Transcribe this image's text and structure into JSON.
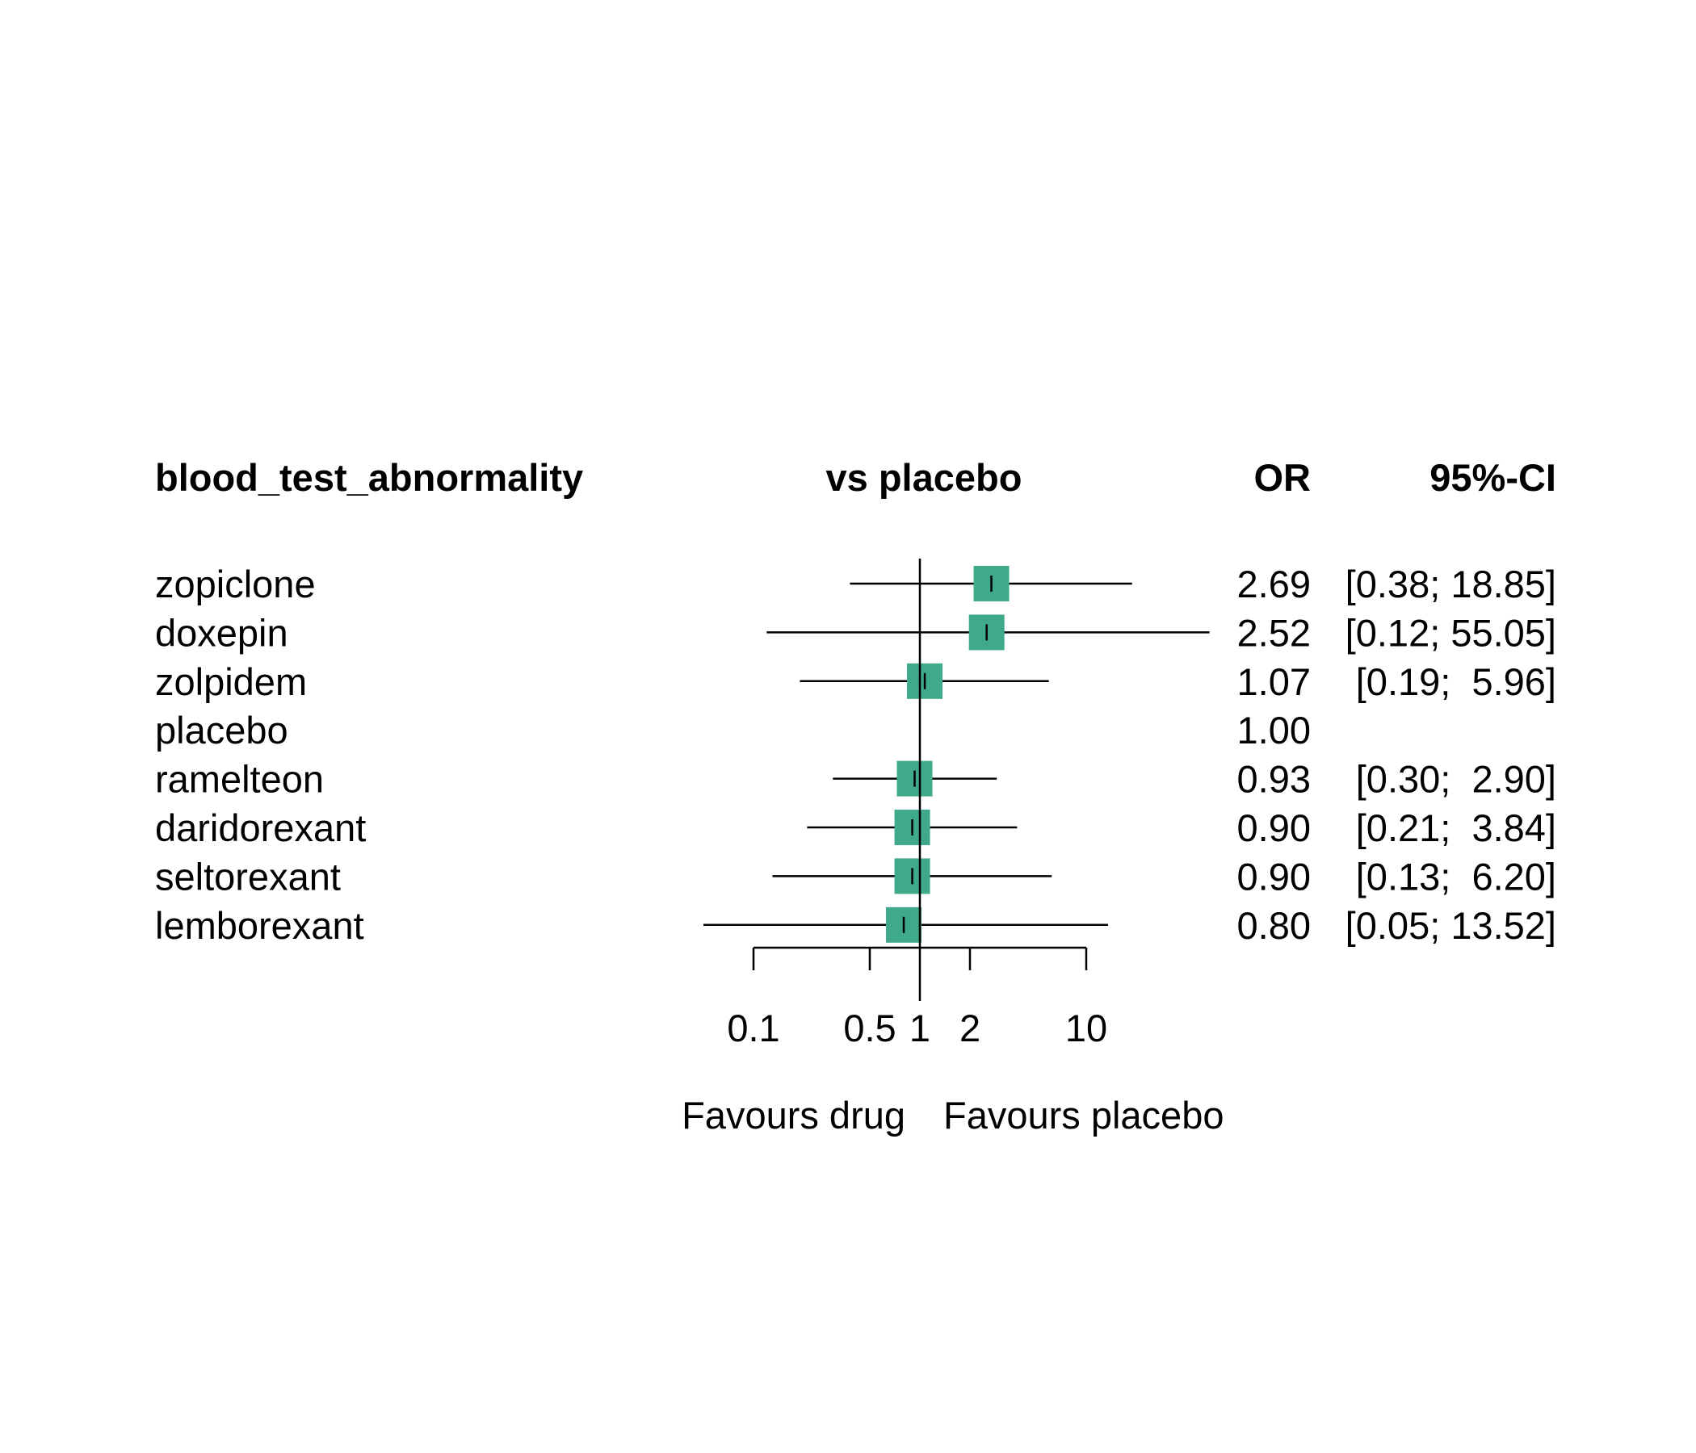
{
  "chart_data": {
    "type": "forest",
    "scale": "log",
    "header": {
      "outcome": "blood_test_abnormality",
      "comparison": "vs placebo",
      "estimate": "OR",
      "interval": "95%-CI"
    },
    "reference_value": 1,
    "rows": [
      {
        "label": "zopiclone",
        "or": 2.69,
        "lower": 0.38,
        "upper": 18.85,
        "or_text": "2.69",
        "ci_text": "[0.38; 18.85]"
      },
      {
        "label": "doxepin",
        "or": 2.52,
        "lower": 0.12,
        "upper": 55.05,
        "or_text": "2.52",
        "ci_text": "[0.12; 55.05]"
      },
      {
        "label": "zolpidem",
        "or": 1.07,
        "lower": 0.19,
        "upper": 5.96,
        "or_text": "1.07",
        "ci_text": "[0.19;  5.96]"
      },
      {
        "label": "placebo",
        "or": 1.0,
        "lower": null,
        "upper": null,
        "or_text": "1.00",
        "ci_text": ""
      },
      {
        "label": "ramelteon",
        "or": 0.93,
        "lower": 0.3,
        "upper": 2.9,
        "or_text": "0.93",
        "ci_text": "[0.30;  2.90]"
      },
      {
        "label": "daridorexant",
        "or": 0.9,
        "lower": 0.21,
        "upper": 3.84,
        "or_text": "0.90",
        "ci_text": "[0.21;  3.84]"
      },
      {
        "label": "seltorexant",
        "or": 0.9,
        "lower": 0.13,
        "upper": 6.2,
        "or_text": "0.90",
        "ci_text": "[0.13;  6.20]"
      },
      {
        "label": "lemborexant",
        "or": 0.8,
        "lower": 0.05,
        "upper": 13.52,
        "or_text": "0.80",
        "ci_text": "[0.05; 13.52]"
      }
    ],
    "x_ticks": [
      {
        "value": 0.1,
        "label": "0.1"
      },
      {
        "value": 0.5,
        "label": "0.5"
      },
      {
        "value": 1,
        "label": "1"
      },
      {
        "value": 2,
        "label": "2"
      },
      {
        "value": 10,
        "label": "10"
      }
    ],
    "favours_left": "Favours drug",
    "favours_right": "Favours placebo",
    "colors": {
      "marker": "#3fa98c",
      "line": "#000000"
    }
  }
}
